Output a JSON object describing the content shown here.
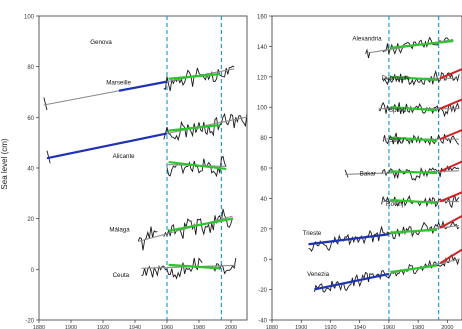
{
  "ylabel": "Sea level (cm)",
  "colors": {
    "obs": "#1a1a1a",
    "trend_full": "#8c8c8c",
    "trend_early": "#1f32b4",
    "trend_late": "#2cc52c",
    "trend_recent": "#d42020",
    "marker": "#1fa0d8"
  },
  "chart_data": [
    {
      "type": "line",
      "panel": "left",
      "xlim": [
        1880,
        2010
      ],
      "ylim": [
        -20,
        100
      ],
      "xticks": [
        1880,
        1900,
        1920,
        1940,
        1960,
        1980,
        2000
      ],
      "yticks": [
        -20,
        0,
        20,
        40,
        60,
        80,
        100
      ],
      "markers_x": [
        1960,
        1994
      ],
      "stations": [
        {
          "name": "Genova",
          "label_at": [
            1912,
            89
          ],
          "start": 1883,
          "end": 2002,
          "level": 72,
          "slope": 0.12,
          "seg_start": 1958,
          "gaps": [
            [
              1951,
              1953
            ]
          ],
          "early": [
            1930,
            1960
          ],
          "late": [
            1961,
            1993
          ],
          "seed": 11
        },
        {
          "name": "Marseille",
          "label_at": [
            1922,
            73
          ],
          "start": 1885,
          "end": 2010,
          "level": 52,
          "slope": 0.13,
          "seg_start": 1958,
          "gaps": [],
          "early": [
            1885,
            1960
          ],
          "late": [
            1961,
            1993
          ],
          "seed": 23
        },
        {
          "name": "Alicante",
          "label_at": [
            1926,
            44
          ],
          "start": 1960,
          "end": 1997,
          "level": 41,
          "slope": -0.02,
          "seg_start": 1960,
          "gaps": [],
          "early": null,
          "late": [
            1961,
            1997
          ],
          "seed": 37
        },
        {
          "name": "Málaga",
          "label_at": [
            1924,
            15
          ],
          "start": 1942,
          "end": 2001,
          "level": 16,
          "slope": 0.17,
          "seg_start": 1942,
          "gaps": [
            [
              1955,
              1957
            ]
          ],
          "early": null,
          "late": [
            1961,
            2001
          ],
          "seed": 41
        },
        {
          "name": "Ceuta",
          "label_at": [
            1926,
            -3
          ],
          "start": 1944,
          "end": 2003,
          "level": 1,
          "slope": 0.02,
          "seg_start": 1944,
          "gaps": [
            [
              1983,
              1987
            ]
          ],
          "early": null,
          "late": [
            1961,
            1993
          ],
          "seed": 53
        }
      ]
    },
    {
      "type": "line",
      "panel": "right",
      "xlim": [
        1880,
        2010
      ],
      "ylim": [
        -40,
        160
      ],
      "xticks": [
        1880,
        1900,
        1920,
        1940,
        1960,
        1980,
        2000
      ],
      "yticks": [
        -40,
        -20,
        0,
        20,
        40,
        60,
        80,
        100,
        120,
        140,
        160
      ],
      "markers_x": [
        1960,
        1994
      ],
      "stations": [
        {
          "name": "Alexandria",
          "label_at": [
            1935,
            144
          ],
          "start": 1944,
          "end": 2004,
          "level": 140,
          "slope": 0.15,
          "seg_start": 1944,
          "gaps": [
            [
              1948,
              1955
            ]
          ],
          "early": null,
          "late": [
            1961,
            2004
          ],
          "seed": 61
        },
        {
          "name": "Dubrovnik",
          "label_at": [
            1955,
            118
          ],
          "start": 1956,
          "end": 2008,
          "level": 119,
          "slope": 0.0,
          "seg_start": 1956,
          "gaps": [],
          "early": null,
          "late": [
            1961,
            1993
          ],
          "seed": 67
        },
        {
          "name": "Split II",
          "label_at": [
            1960,
            97
          ],
          "start": 1953,
          "end": 2008,
          "level": 99,
          "slope": 0.0,
          "seg_start": 1953,
          "gaps": [],
          "early": null,
          "late": [
            1961,
            1993
          ],
          "seed": 71
        },
        {
          "name": "Split I",
          "label_at": [
            1960,
            77
          ],
          "start": 1956,
          "end": 2008,
          "level": 79,
          "slope": 0.0,
          "seg_start": 1956,
          "gaps": [],
          "early": null,
          "late": [
            1961,
            1993
          ],
          "seed": 79
        },
        {
          "name": "Bakar",
          "label_at": [
            1940,
            55
          ],
          "start": 1930,
          "end": 2008,
          "level": 57,
          "slope": 0.03,
          "seg_start": 1955,
          "gaps": [],
          "early": null,
          "late": [
            1961,
            1993
          ],
          "seed": 83
        },
        {
          "name": "Rovinj",
          "label_at": [
            1958,
            35
          ],
          "start": 1955,
          "end": 2008,
          "level": 38,
          "slope": 0.0,
          "seg_start": 1955,
          "gaps": [],
          "early": null,
          "late": [
            1961,
            1993
          ],
          "seed": 89
        },
        {
          "name": "Trieste",
          "label_at": [
            1901,
            16
          ],
          "start": 1905,
          "end": 2008,
          "level": 16,
          "slope": 0.12,
          "seg_start": 1905,
          "gaps": [],
          "early": [
            1905,
            1960
          ],
          "late": [
            1961,
            1993
          ],
          "seed": 97
        },
        {
          "name": "Venezia",
          "label_at": [
            1904,
            -11
          ],
          "start": 1909,
          "end": 2008,
          "level": -10,
          "slope": 0.2,
          "seg_start": 1909,
          "gaps": [],
          "early": [
            1909,
            1960
          ],
          "late": [
            1961,
            1993
          ],
          "seed": 101
        }
      ]
    }
  ]
}
